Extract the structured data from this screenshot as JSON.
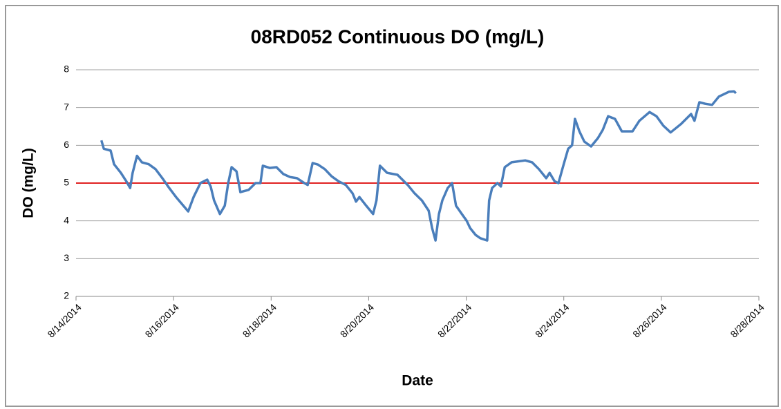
{
  "chart_data": {
    "type": "line",
    "title": "08RD052 Continuous DO (mg/L)",
    "x_label": "Date",
    "y_label": "DO (mg/L)",
    "xlim": [
      41865,
      41879
    ],
    "xticks": [
      {
        "value": 41865,
        "label": "8/14/2014"
      },
      {
        "value": 41867,
        "label": "8/16/2014"
      },
      {
        "value": 41869,
        "label": "8/18/2014"
      },
      {
        "value": 41871,
        "label": "8/20/2014"
      },
      {
        "value": 41873,
        "label": "8/22/2014"
      },
      {
        "value": 41875,
        "label": "8/24/2014"
      },
      {
        "value": 41877,
        "label": "8/26/2014"
      },
      {
        "value": 41879,
        "label": "8/28/2014"
      }
    ],
    "ylim": [
      2,
      8
    ],
    "yticks": [
      2,
      3,
      4,
      5,
      6,
      7,
      8
    ],
    "grid": true,
    "reference_line": {
      "value": 5,
      "color": "#e02020"
    },
    "x": [
      41865.52,
      41865.57,
      41865.71,
      41865.78,
      41865.92,
      41866.03,
      41866.11,
      41866.16,
      41866.25,
      41866.35,
      41866.49,
      41866.63,
      41866.77,
      41866.91,
      41867.05,
      41867.2,
      41867.3,
      41867.41,
      41867.55,
      41867.69,
      41867.76,
      41867.83,
      41867.95,
      41868.05,
      41868.12,
      41868.19,
      41868.29,
      41868.37,
      41868.54,
      41868.68,
      41868.78,
      41868.83,
      41868.97,
      41869.11,
      41869.25,
      41869.39,
      41869.53,
      41869.68,
      41869.75,
      41869.85,
      41869.96,
      41870.1,
      41870.24,
      41870.38,
      41870.53,
      41870.67,
      41870.74,
      41870.81,
      41870.95,
      41871.09,
      41871.16,
      41871.23,
      41871.38,
      41871.59,
      41871.8,
      41871.94,
      41872.09,
      41872.23,
      41872.3,
      41872.37,
      41872.44,
      41872.51,
      41872.62,
      41872.71,
      41872.79,
      41872.91,
      41873.01,
      41873.08,
      41873.19,
      41873.29,
      41873.43,
      41873.47,
      41873.53,
      41873.64,
      41873.71,
      41873.79,
      41873.93,
      41874.21,
      41874.35,
      41874.49,
      41874.64,
      41874.71,
      41874.81,
      41874.89,
      41874.99,
      41875.09,
      41875.17,
      41875.23,
      41875.32,
      41875.42,
      41875.56,
      41875.7,
      41875.8,
      41875.91,
      41876.05,
      41876.19,
      41876.41,
      41876.55,
      41876.76,
      41876.9,
      41877.04,
      41877.19,
      41877.4,
      41877.61,
      41877.68,
      41877.78,
      41877.9,
      41878.04,
      41878.18,
      41878.39,
      41878.49,
      41878.53
    ],
    "series": [
      {
        "name": "DO",
        "color": "#4a7ebb",
        "values": [
          6.13,
          5.91,
          5.86,
          5.5,
          5.27,
          5.05,
          4.87,
          5.27,
          5.72,
          5.55,
          5.5,
          5.37,
          5.13,
          4.87,
          4.63,
          4.4,
          4.25,
          4.63,
          5.0,
          5.09,
          4.91,
          4.54,
          4.18,
          4.4,
          5.0,
          5.42,
          5.31,
          4.76,
          4.82,
          5.0,
          5.0,
          5.46,
          5.4,
          5.42,
          5.24,
          5.16,
          5.13,
          5.0,
          4.95,
          5.53,
          5.49,
          5.37,
          5.18,
          5.05,
          4.95,
          4.73,
          4.51,
          4.63,
          4.4,
          4.18,
          4.54,
          5.46,
          5.27,
          5.22,
          4.95,
          4.73,
          4.54,
          4.27,
          3.81,
          3.48,
          4.18,
          4.54,
          4.87,
          5.0,
          4.4,
          4.18,
          4.0,
          3.81,
          3.63,
          3.54,
          3.48,
          4.54,
          4.87,
          5.0,
          4.91,
          5.42,
          5.55,
          5.6,
          5.55,
          5.37,
          5.13,
          5.27,
          5.05,
          5.0,
          5.46,
          5.91,
          6.0,
          6.7,
          6.37,
          6.1,
          5.97,
          6.19,
          6.41,
          6.77,
          6.7,
          6.37,
          6.37,
          6.65,
          6.88,
          6.77,
          6.52,
          6.34,
          6.56,
          6.83,
          6.65,
          7.14,
          7.1,
          7.07,
          7.29,
          7.42,
          7.43,
          7.38
        ]
      }
    ]
  }
}
